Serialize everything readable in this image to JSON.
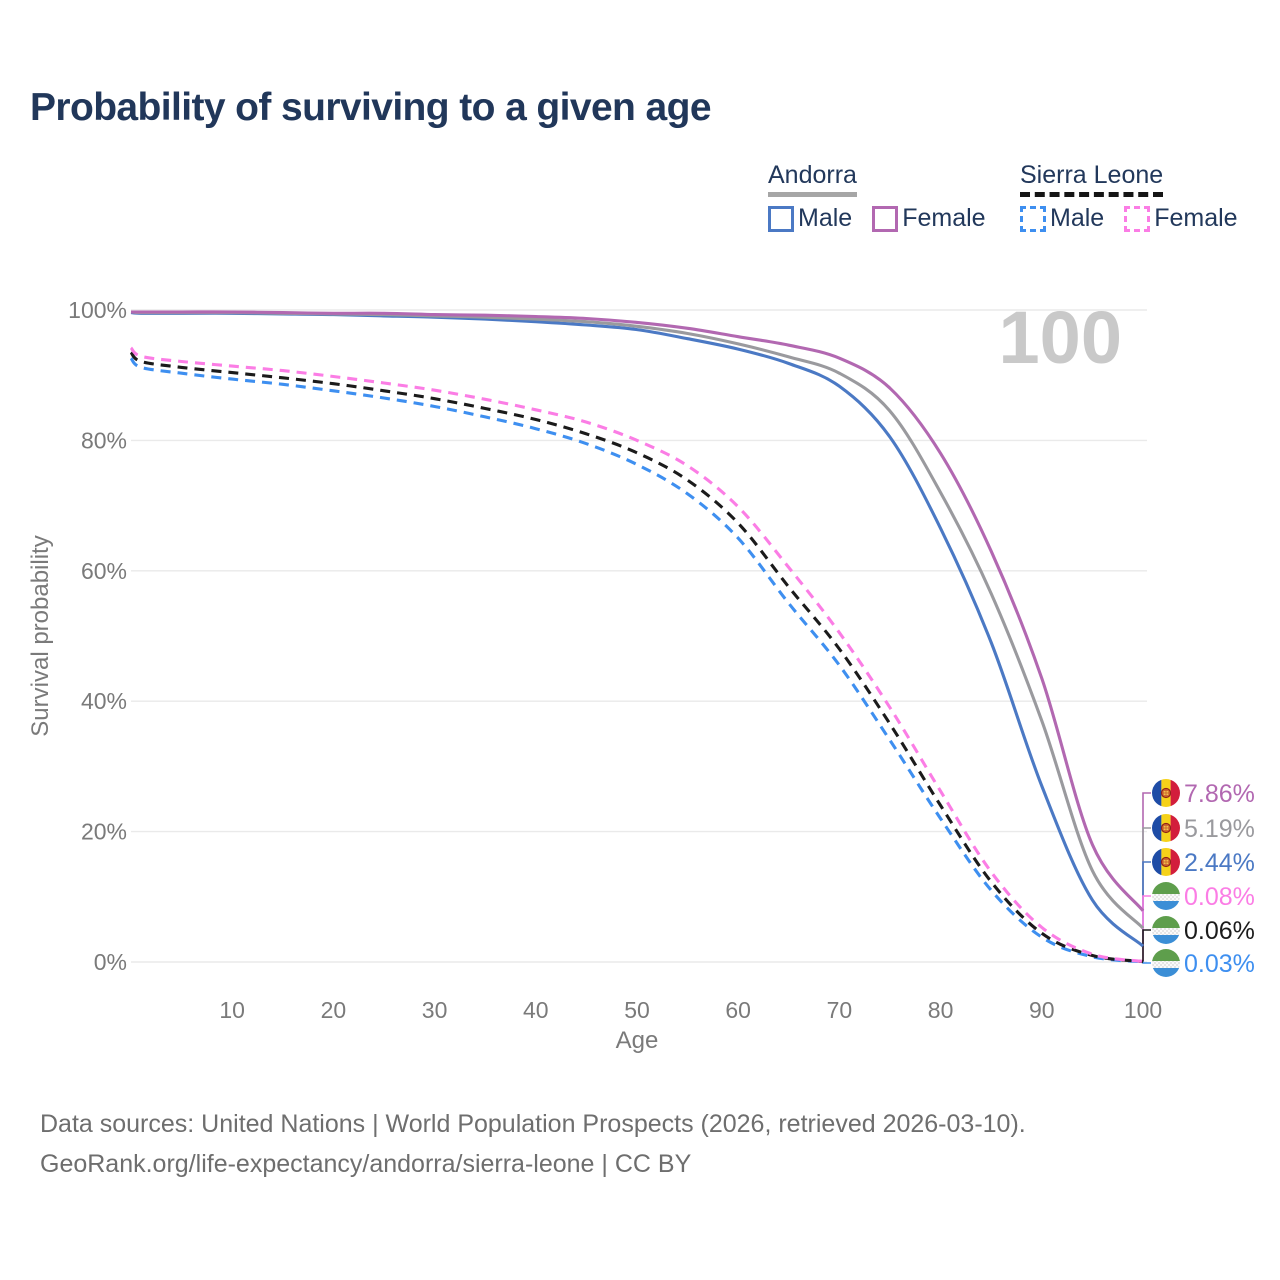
{
  "title": "Probability of surviving to a given age",
  "watermark": "100",
  "legend": {
    "groups": [
      {
        "label": "Andorra",
        "line_style": "solid",
        "items": [
          {
            "label": "Male",
            "color": "#4b79c4"
          },
          {
            "label": "Female",
            "color": "#b268b1"
          }
        ]
      },
      {
        "label": "Sierra Leone",
        "line_style": "dashed",
        "items": [
          {
            "label": "Male",
            "color": "#3e8ff0"
          },
          {
            "label": "Female",
            "color": "#fb7de5"
          }
        ]
      }
    ]
  },
  "chart_data": {
    "type": "line",
    "title": "Probability of surviving to a given age",
    "xlabel": "Age",
    "ylabel": "Survival probability",
    "xlim": [
      0,
      100
    ],
    "ylim": [
      0,
      100
    ],
    "x_ticks": [
      10,
      20,
      30,
      40,
      50,
      60,
      70,
      80,
      90,
      100
    ],
    "y_ticks": [
      0,
      20,
      40,
      60,
      80,
      100
    ],
    "y_tick_suffix": "%",
    "grid": "horizontal",
    "x": [
      0,
      1,
      5,
      10,
      15,
      20,
      25,
      30,
      35,
      40,
      45,
      50,
      55,
      60,
      65,
      70,
      75,
      80,
      85,
      90,
      95,
      100
    ],
    "series": [
      {
        "name": "Sierra Leone Male",
        "country": "Sierra Leone",
        "sex": "Male",
        "color": "#3e8ff0",
        "dash": true,
        "end_label": "0.03%",
        "values": [
          92.6,
          91.2,
          90.3,
          89.4,
          88.6,
          87.6,
          86.5,
          85.2,
          83.6,
          81.8,
          79.5,
          76.3,
          71.8,
          65.0,
          55.0,
          45.5,
          34.0,
          22.0,
          11.0,
          3.8,
          0.8,
          0.03
        ]
      },
      {
        "name": "Sierra Leone (all)",
        "country": "Sierra Leone",
        "sex": "All",
        "color": "#1b1b1b",
        "dash": true,
        "end_label": "0.06%",
        "values": [
          93.5,
          92.1,
          91.2,
          90.4,
          89.6,
          88.7,
          87.6,
          86.4,
          84.9,
          83.2,
          81.0,
          78.1,
          73.9,
          67.3,
          57.5,
          48.0,
          36.5,
          24.0,
          12.3,
          4.4,
          1.0,
          0.06
        ]
      },
      {
        "name": "Sierra Leone Female",
        "country": "Sierra Leone",
        "sex": "Female",
        "color": "#fb7de5",
        "dash": true,
        "end_label": "0.08%",
        "values": [
          94.2,
          92.9,
          92.1,
          91.4,
          90.7,
          89.8,
          88.8,
          87.7,
          86.3,
          84.7,
          82.8,
          80.0,
          76.1,
          69.8,
          60.5,
          50.5,
          39.0,
          26.2,
          13.8,
          5.3,
          1.2,
          0.08
        ]
      },
      {
        "name": "Andorra Male",
        "country": "Andorra",
        "sex": "Male",
        "color": "#4b79c4",
        "dash": false,
        "end_label": "2.44%",
        "values": [
          99.6,
          99.5,
          99.5,
          99.5,
          99.4,
          99.3,
          99.1,
          98.9,
          98.6,
          98.2,
          97.7,
          97.0,
          95.6,
          94.0,
          91.8,
          88.3,
          80.5,
          66.5,
          49.0,
          27.0,
          9.5,
          2.44
        ]
      },
      {
        "name": "Andorra (all)",
        "country": "Andorra",
        "sex": "All",
        "color": "#9a9a9e",
        "dash": false,
        "end_label": "5.19%",
        "values": [
          99.7,
          99.6,
          99.6,
          99.6,
          99.5,
          99.4,
          99.3,
          99.1,
          98.9,
          98.6,
          98.2,
          97.5,
          96.4,
          94.8,
          92.8,
          90.3,
          84.5,
          72.0,
          56.5,
          37.0,
          14.0,
          5.19
        ]
      },
      {
        "name": "Andorra Female",
        "country": "Andorra",
        "sex": "Female",
        "color": "#b268b1",
        "dash": false,
        "end_label": "7.86%",
        "values": [
          99.7,
          99.7,
          99.7,
          99.7,
          99.6,
          99.5,
          99.5,
          99.3,
          99.2,
          99.0,
          98.7,
          98.1,
          97.2,
          95.9,
          94.6,
          92.6,
          88.0,
          78.0,
          63.0,
          43.5,
          18.0,
          7.86
        ]
      }
    ]
  },
  "footer": {
    "line1": "Data sources: United Nations | World Population Prospects (2026, retrieved 2026-03-10).",
    "line2": "GeoRank.org/life-expectancy/andorra/sierra-leone | CC BY"
  }
}
